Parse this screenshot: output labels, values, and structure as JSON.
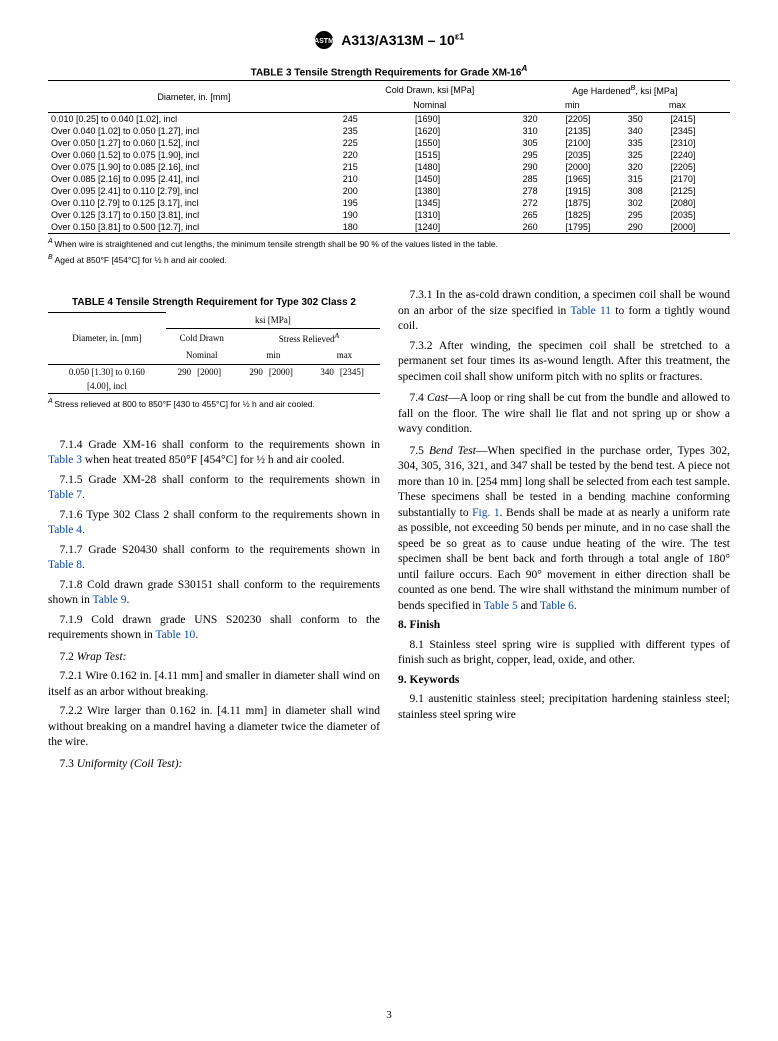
{
  "header": {
    "doc_id": "A313/A313M – 10",
    "super": "ε1"
  },
  "table3": {
    "title": "TABLE 3 Tensile Strength Requirements for Grade XM-16",
    "title_sup": "A",
    "col_diameter": "Diameter, in. [mm]",
    "col_cold_drawn": "Cold Drawn, ksi [MPa]",
    "col_nominal": "Nominal",
    "col_age": "Age Hardened",
    "col_age_sup": "B",
    "col_age_units": ", ksi [MPa]",
    "col_min": "min",
    "col_max": "max",
    "rows": [
      {
        "d": "0.010 [0.25] to 0.040 [1.02], incl",
        "cd": "245",
        "cdb": "[1690]",
        "mn": "320",
        "mnb": "[2205]",
        "mx": "350",
        "mxb": "[2415]"
      },
      {
        "d": "Over 0.040 [1.02] to 0.050 [1.27], incl",
        "cd": "235",
        "cdb": "[1620]",
        "mn": "310",
        "mnb": "[2135]",
        "mx": "340",
        "mxb": "[2345]"
      },
      {
        "d": "Over 0.050 [1.27] to 0.060 [1.52], incl",
        "cd": "225",
        "cdb": "[1550]",
        "mn": "305",
        "mnb": "[2100]",
        "mx": "335",
        "mxb": "[2310]"
      },
      {
        "d": "Over 0.060 [1.52] to 0.075 [1.90], incl",
        "cd": "220",
        "cdb": "[1515]",
        "mn": "295",
        "mnb": "[2035]",
        "mx": "325",
        "mxb": "[2240]"
      },
      {
        "d": "Over 0.075 [1.90] to 0.085 [2.16], incl",
        "cd": "215",
        "cdb": "[1480]",
        "mn": "290",
        "mnb": "[2000]",
        "mx": "320",
        "mxb": "[2205]"
      },
      {
        "d": "Over 0.085 [2.16] to 0.095 [2.41], incl",
        "cd": "210",
        "cdb": "[1450]",
        "mn": "285",
        "mnb": "[1965]",
        "mx": "315",
        "mxb": "[2170]"
      },
      {
        "d": "Over 0.095 [2.41] to 0.110 [2.79], incl",
        "cd": "200",
        "cdb": "[1380]",
        "mn": "278",
        "mnb": "[1915]",
        "mx": "308",
        "mxb": "[2125]"
      },
      {
        "d": "Over 0.110 [2.79] to 0.125 [3.17], incl",
        "cd": "195",
        "cdb": "[1345]",
        "mn": "272",
        "mnb": "[1875]",
        "mx": "302",
        "mxb": "[2080]"
      },
      {
        "d": "Over 0.125 [3.17] to 0.150 [3.81], incl",
        "cd": "190",
        "cdb": "[1310]",
        "mn": "265",
        "mnb": "[1825]",
        "mx": "295",
        "mxb": "[2035]"
      },
      {
        "d": "Over 0.150 [3.81] to 0.500 [12.7], incl",
        "cd": "180",
        "cdb": "[1240]",
        "mn": "260",
        "mnb": "[1795]",
        "mx": "290",
        "mxb": "[2000]"
      }
    ],
    "foot_a": "When wire is straightened and cut lengths, the minimum tensile strength shall be 90 % of the values listed in the table.",
    "foot_b": "Aged at 850°F [454°C] for ½ h and air cooled."
  },
  "table4": {
    "title": "TABLE 4 Tensile Strength Requirement for Type 302 Class 2",
    "units": "ksi [MPa]",
    "col_diameter": "Diameter, in. [mm]",
    "col_cold_drawn": "Cold Drawn",
    "col_nominal": "Nominal",
    "col_stress": "Stress Relieved",
    "col_stress_sup": "A",
    "col_min": "min",
    "col_max": "max",
    "row": {
      "d1": "0.050 [1.30] to 0.160",
      "d2": "[4.00], incl",
      "cd": "290",
      "cdb": "[2000]",
      "mn": "290",
      "mnb": "[2000]",
      "mx": "340",
      "mxb": "[2345]"
    },
    "foot_a": "Stress relieved at 800 to 850°F [430 to 455°C] for ½ h and air cooled."
  },
  "body": {
    "p714a": "7.1.4 Grade XM-16 shall conform to the requirements shown in ",
    "p714b": " when heat treated 850°F [454°C] for ½ h and air cooled.",
    "ref_t3": "Table 3",
    "p715a": "7.1.5 Grade XM-28 shall conform to the requirements shown in ",
    "ref_t7": "Table 7",
    "p716a": "7.1.6 Type 302 Class 2 shall conform to the requirements shown in ",
    "ref_t4": "Table 4",
    "p717a": "7.1.7 Grade S20430 shall conform to the requirements shown in ",
    "ref_t8": "Table 8",
    "p718a": "7.1.8 Cold drawn grade S30151 shall conform to the requirements shown in ",
    "ref_t9": "Table 9",
    "p719a": "7.1.9 Cold drawn grade UNS S20230 shall conform to the requirements shown in ",
    "ref_t10": "Table 10",
    "p72": "7.2 ",
    "p72_i": "Wrap Test:",
    "p721": "7.2.1 Wire 0.162 in. [4.11 mm] and smaller in diameter shall wind on itself as an arbor without breaking.",
    "p722": "7.2.2 Wire larger than 0.162 in. [4.11 mm] in diameter shall wind without breaking on a mandrel having a diameter twice the diameter of the wire.",
    "p73": "7.3 ",
    "p73_i": "Uniformity (Coil Test):",
    "p731": "7.3.1 In the as-cold drawn condition, a specimen coil shall be wound on an arbor of the size specified in ",
    "ref_t11": "Table 11",
    "p731b": " to form a tightly wound coil.",
    "p732": "7.3.2 After winding, the specimen coil shall be stretched to a permanent set four times its as-wound length. After this treatment, the specimen coil shall show uniform pitch with no splits or fractures.",
    "p74": "7.4 ",
    "p74_i": "Cast",
    "p74b": "—A loop or ring shall be cut from the bundle and allowed to fall on the floor. The wire shall lie flat and not spring up or show a wavy condition.",
    "p75": "7.5 ",
    "p75_i": "Bend Test",
    "p75b": "—When specified in the purchase order, Types 302, 304, 305, 316, 321, and 347 shall be tested by the bend test. A piece not more than 10 in. [254 mm] long shall be selected from each test sample. These specimens shall be tested in a bending machine conforming substantially to ",
    "ref_fig1": "Fig. 1",
    "p75c": ". Bends shall be made at as nearly a uniform rate as possible, not exceeding 50 bends per minute, and in no case shall the speed be so great as to cause undue heating of the wire. The test specimen shall be bent back and forth through a total angle of 180° until failure occurs. Each 90° movement in either direction shall be counted as one bend. The wire shall withstand the minimum number of bends specified in ",
    "ref_t5": "Table 5",
    "p75d": " and ",
    "ref_t6": "Table 6",
    "sec8": "8.  Finish",
    "p81": "8.1 Stainless steel spring wire is supplied with different types of finish such as bright, copper, lead, oxide, and other.",
    "sec9": "9.  Keywords",
    "p91": "9.1   austenitic stainless steel; precipitation hardening stainless steel; stainless steel spring wire"
  },
  "page_number": "3"
}
